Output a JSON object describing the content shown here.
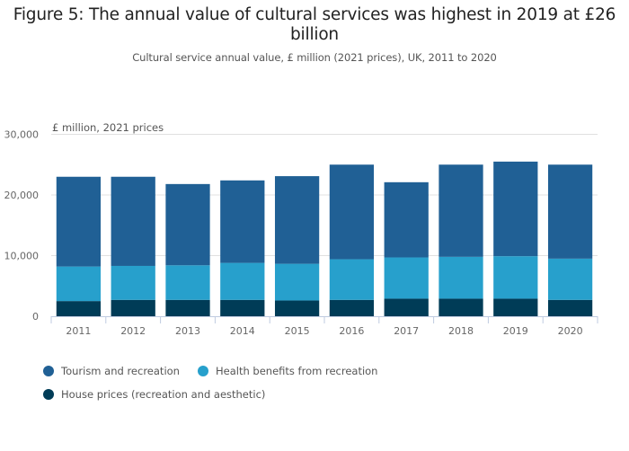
{
  "chart_data": {
    "type": "bar",
    "stacked": true,
    "title": "Figure 5: The annual value of cultural services was highest in 2019 at £26 billion",
    "subtitle": "Cultural service annual value, £ million (2021 prices), UK, 2011 to 2020",
    "ylabel": "£ million, 2021 prices",
    "xlabel": "",
    "ylim": [
      0,
      30000
    ],
    "yticks": [
      0,
      10000,
      20000,
      30000
    ],
    "ytick_labels": [
      "0",
      "10,000",
      "20,000",
      "30,000"
    ],
    "grid": true,
    "legend_position": "bottom-left",
    "categories": [
      "2011",
      "2012",
      "2013",
      "2014",
      "2015",
      "2016",
      "2017",
      "2018",
      "2019",
      "2020"
    ],
    "series": [
      {
        "name": "House prices (recreation and aesthetic)",
        "color": "#003c57",
        "values": [
          2500,
          2700,
          2700,
          2700,
          2600,
          2700,
          2900,
          2900,
          2900,
          2700
        ]
      },
      {
        "name": "Health benefits from recreation",
        "color": "#27a0cc",
        "values": [
          5700,
          5600,
          5700,
          6100,
          6050,
          6700,
          6800,
          6900,
          7000,
          6800
        ]
      },
      {
        "name": "Tourism and recreation",
        "color": "#206095",
        "values": [
          14800,
          14700,
          13400,
          13600,
          14450,
          15600,
          12400,
          15200,
          15600,
          15500
        ]
      }
    ]
  },
  "legend": {
    "items": [
      {
        "label": "Tourism and recreation",
        "color": "#206095"
      },
      {
        "label": "Health benefits from recreation",
        "color": "#27a0cc"
      },
      {
        "label": "House prices (recreation and aesthetic)",
        "color": "#003c57"
      }
    ]
  },
  "colors": {
    "gridline": "#e0e0e0",
    "axis": "#bfcbe0"
  }
}
